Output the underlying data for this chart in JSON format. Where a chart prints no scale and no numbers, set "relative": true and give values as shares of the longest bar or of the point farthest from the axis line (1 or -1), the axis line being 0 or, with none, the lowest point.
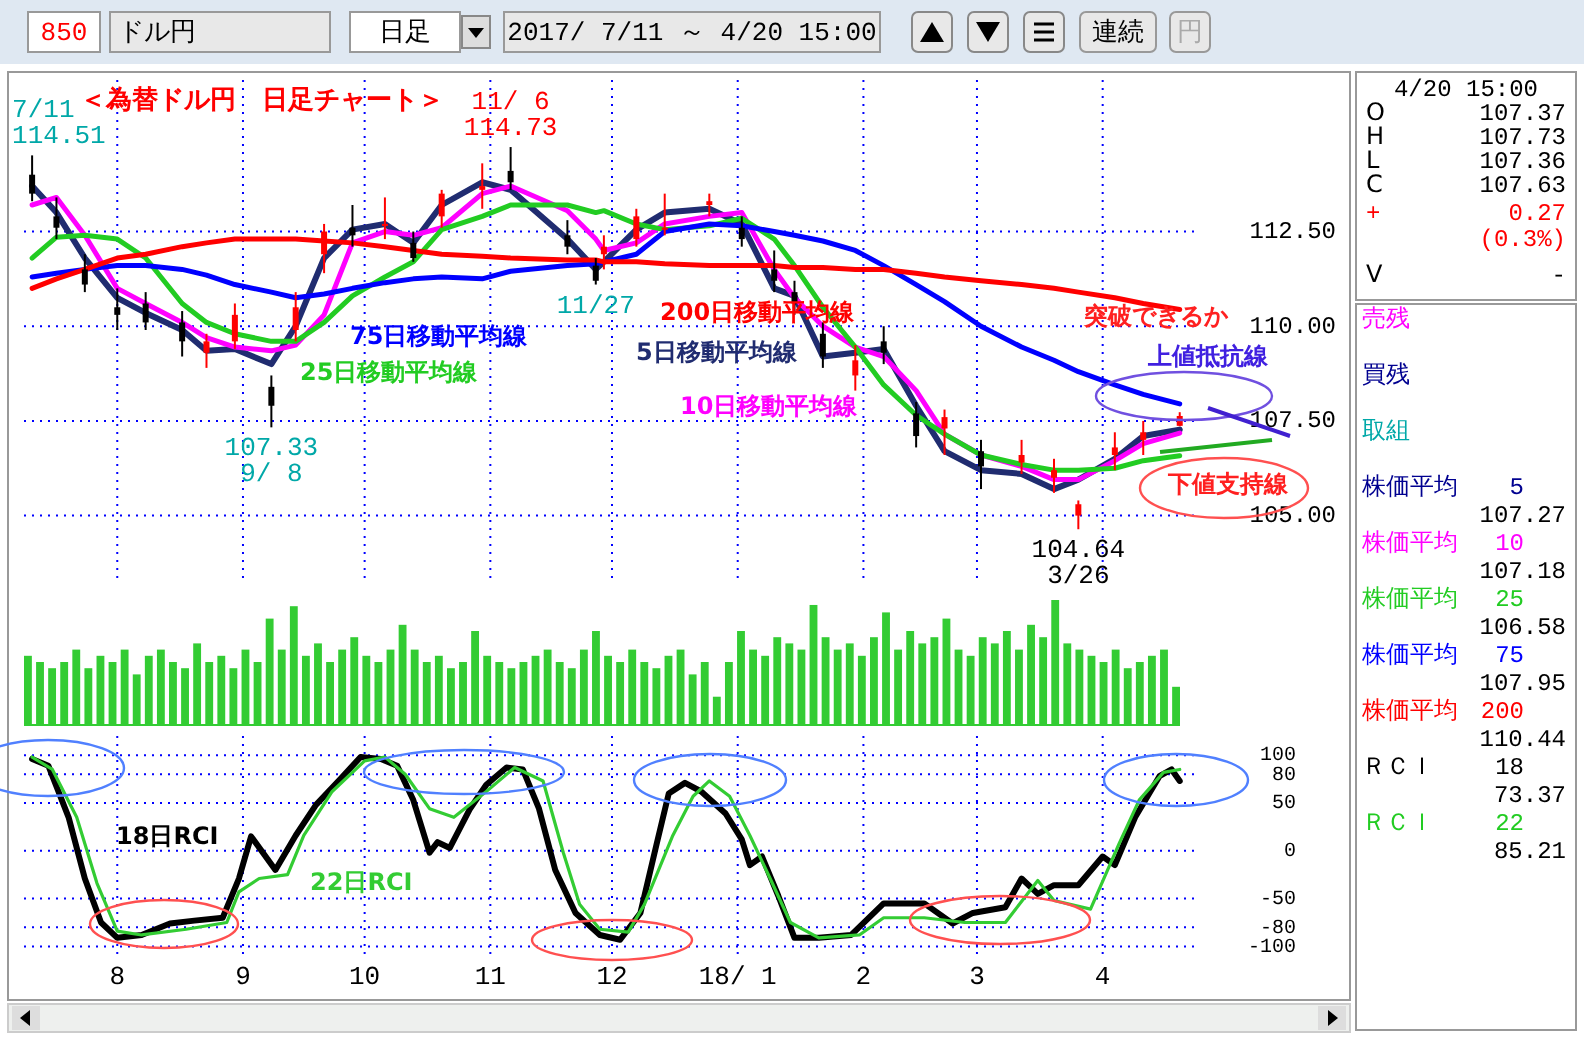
{
  "chart_data": [
    {
      "type": "other",
      "annotations": [
        "850",
        "ドル円",
        "日足",
        "2017/ 7/11 ～ 4/20 15:00",
        "連続",
        "円"
      ]
    },
    {
      "type": "candlestick",
      "title": "＜為替ドル円　日足チャート＞",
      "x": [
        "2017-07-11",
        "2017-07-17",
        "2017-07-24",
        "2017-08-01",
        "2017-08-08",
        "2017-08-17",
        "2017-08-23",
        "2017-08-30",
        "2017-09-08",
        "2017-09-14",
        "2017-09-21",
        "2017-09-28",
        "2017-10-06",
        "2017-10-13",
        "2017-10-20",
        "2017-10-30",
        "2017-11-06",
        "2017-11-20",
        "2017-11-27",
        "2017-11-29",
        "2017-12-07",
        "2017-12-14",
        "2017-12-25",
        "2018-01-02",
        "2018-01-10",
        "2018-01-15",
        "2018-01-22",
        "2018-01-30",
        "2018-02-06",
        "2018-02-14",
        "2018-02-21",
        "2018-03-02",
        "2018-03-12",
        "2018-03-20",
        "2018-03-26",
        "2018-04-04",
        "2018-04-11",
        "2018-04-20"
      ],
      "ohlc": [
        [
          114.0,
          114.51,
          113.3,
          113.5
        ],
        [
          112.9,
          113.4,
          112.3,
          112.6
        ],
        [
          111.5,
          111.9,
          110.9,
          111.1
        ],
        [
          110.5,
          111.0,
          109.9,
          110.3
        ],
        [
          110.6,
          110.9,
          109.9,
          110.1
        ],
        [
          110.1,
          110.4,
          109.2,
          109.6
        ],
        [
          109.3,
          109.8,
          108.9,
          109.6
        ],
        [
          109.6,
          110.6,
          109.4,
          110.3
        ],
        [
          108.4,
          108.7,
          107.33,
          107.9
        ],
        [
          109.9,
          110.9,
          109.6,
          110.5
        ],
        [
          111.9,
          112.7,
          111.4,
          112.5
        ],
        [
          112.6,
          113.2,
          112.1,
          112.4
        ],
        [
          112.7,
          113.4,
          112.3,
          112.7
        ],
        [
          112.2,
          112.5,
          111.7,
          111.8
        ],
        [
          112.9,
          113.6,
          112.6,
          113.5
        ],
        [
          113.6,
          114.3,
          113.1,
          113.7
        ],
        [
          114.1,
          114.73,
          113.6,
          113.8
        ],
        [
          112.4,
          112.8,
          111.9,
          112.1
        ],
        [
          111.6,
          111.8,
          111.1,
          111.2
        ],
        [
          111.9,
          112.4,
          111.5,
          112.1
        ],
        [
          112.3,
          113.1,
          112.1,
          112.9
        ],
        [
          112.6,
          113.5,
          112.4,
          112.6
        ],
        [
          113.2,
          113.5,
          112.9,
          113.3
        ],
        [
          112.6,
          112.9,
          112.1,
          112.3
        ],
        [
          111.5,
          112.0,
          110.9,
          111.2
        ],
        [
          110.9,
          111.2,
          110.3,
          110.6
        ],
        [
          109.8,
          110.1,
          108.9,
          109.2
        ],
        [
          108.7,
          109.5,
          108.3,
          109.1
        ],
        [
          109.6,
          110.0,
          109.0,
          109.3
        ],
        [
          107.7,
          108.0,
          106.8,
          107.1
        ],
        [
          107.3,
          107.8,
          106.6,
          107.6
        ],
        [
          106.7,
          107.0,
          105.7,
          106.3
        ],
        [
          106.4,
          107.0,
          106.1,
          106.6
        ],
        [
          106.0,
          106.5,
          105.6,
          106.2
        ],
        [
          105.0,
          105.4,
          104.64,
          105.3
        ],
        [
          106.6,
          107.2,
          106.2,
          106.8
        ],
        [
          107.0,
          107.5,
          106.6,
          107.2
        ],
        [
          107.37,
          107.73,
          107.36,
          107.63
        ]
      ],
      "series": [
        {
          "name": "5日移動平均線",
          "type": "line",
          "color": "#202c70",
          "values": [
            113.7,
            113.0,
            111.8,
            110.75,
            110.35,
            109.9,
            109.35,
            109.4,
            109.0,
            110.0,
            111.8,
            112.55,
            112.7,
            112.2,
            113.2,
            113.8,
            113.6,
            112.3,
            111.5,
            111.7,
            112.55,
            113.0,
            113.1,
            112.7,
            111.0,
            110.8,
            109.2,
            109.3,
            109.4,
            107.9,
            106.7,
            106.2,
            106.1,
            105.7,
            105.95,
            106.5,
            107.1,
            107.27
          ]
        },
        {
          "name": "10日移動平均線",
          "type": "line",
          "color": "#ff00ff",
          "values": [
            113.2,
            113.4,
            112.4,
            111.0,
            110.6,
            110.1,
            109.7,
            109.45,
            109.35,
            109.5,
            110.3,
            112.2,
            112.5,
            112.4,
            112.6,
            113.5,
            113.7,
            113.05,
            112.3,
            112.0,
            112.2,
            112.7,
            112.9,
            113.0,
            111.5,
            110.75,
            110.0,
            109.45,
            109.2,
            108.3,
            107.15,
            106.6,
            106.3,
            105.95,
            105.95,
            106.45,
            106.9,
            107.18
          ]
        },
        {
          "name": "25日移動平均線",
          "type": "line",
          "color": "#22cc22",
          "values": [
            111.8,
            112.35,
            112.4,
            112.3,
            111.8,
            110.6,
            110.1,
            109.8,
            109.6,
            109.6,
            110.1,
            110.8,
            111.3,
            111.7,
            112.55,
            112.9,
            113.2,
            113.2,
            113.0,
            113.05,
            112.7,
            112.55,
            112.65,
            112.85,
            112.3,
            111.6,
            110.5,
            109.45,
            108.45,
            107.65,
            107.15,
            106.6,
            106.35,
            106.2,
            106.2,
            106.25,
            106.45,
            106.58
          ]
        },
        {
          "name": "75日移動平均線",
          "type": "line",
          "color": "#0000ff",
          "values": [
            111.3,
            111.4,
            111.5,
            111.6,
            111.6,
            111.5,
            111.35,
            111.1,
            110.9,
            110.75,
            110.85,
            111.0,
            111.15,
            111.25,
            111.3,
            111.25,
            111.45,
            111.6,
            111.65,
            111.7,
            111.9,
            112.5,
            112.7,
            112.65,
            112.5,
            112.4,
            112.25,
            112.0,
            111.6,
            111.1,
            110.65,
            110.0,
            109.45,
            109.1,
            108.8,
            108.45,
            108.2,
            107.95
          ]
        },
        {
          "name": "200日移動平均線",
          "type": "line",
          "color": "#ff0000",
          "values": [
            111.0,
            111.25,
            111.5,
            111.8,
            111.9,
            112.1,
            112.2,
            112.3,
            112.3,
            112.3,
            112.25,
            112.2,
            112.1,
            112.0,
            111.9,
            111.85,
            111.8,
            111.75,
            111.75,
            111.7,
            111.7,
            111.65,
            111.6,
            111.6,
            111.6,
            111.55,
            111.55,
            111.5,
            111.5,
            111.4,
            111.3,
            111.2,
            111.1,
            111.0,
            110.9,
            110.75,
            110.6,
            110.44
          ]
        }
      ],
      "xlim": [
        "2017-07-09",
        "2018-04-25"
      ],
      "ylim": [
        103.3,
        116.5
      ],
      "xticks": [
        {
          "value": "2017-08-01",
          "label": null
        },
        {
          "value": "2017-09-01",
          "label": null
        },
        {
          "value": "2017-10-01",
          "label": null
        },
        {
          "value": "2017-11-01",
          "label": null
        },
        {
          "value": "2017-12-01",
          "label": null
        },
        {
          "value": "2018-01-01",
          "label": null
        },
        {
          "value": "2018-02-01",
          "label": null
        },
        {
          "value": "2018-03-01",
          "label": null
        },
        {
          "value": "2018-04-01",
          "label": null
        }
      ],
      "yticks": [
        {
          "value": 105,
          "label": "105.00"
        },
        {
          "value": 107.5,
          "label": "107.50"
        },
        {
          "value": 110,
          "label": "110.00"
        },
        {
          "value": 112.5,
          "label": "112.50"
        }
      ],
      "tick_labels": "y",
      "grid": true,
      "annotations": [
        {
          "text": "7/11\n114.51",
          "x": "2017-07-11",
          "y": 114.51
        },
        {
          "text": "11/ 6\n114.73",
          "x": "2017-11-06",
          "y": 114.73
        },
        {
          "text": "107.33\n9/ 8",
          "x": "2017-09-08",
          "y": 107.33
        },
        {
          "text": "11/27",
          "x": "2017-11-27",
          "y": 111.1
        },
        {
          "text": "104.64\n3/26",
          "x": "2018-03-26",
          "y": 104.64
        },
        "突破できるか",
        "上値抵抗線",
        "下値支持線"
      ]
    },
    {
      "type": "bar",
      "relative": true,
      "color": "#33cc33",
      "categories": [
        null,
        null,
        null,
        null,
        null,
        null,
        null,
        null,
        null,
        null,
        null,
        null,
        null,
        null,
        null,
        null,
        null,
        null,
        null,
        null,
        null,
        null,
        null,
        null,
        null,
        null,
        null,
        null,
        null,
        null,
        null,
        null,
        null,
        null,
        null,
        null,
        null,
        null,
        null,
        null,
        null,
        null,
        null,
        null,
        null,
        null,
        null,
        null,
        null,
        null,
        null,
        null,
        null,
        null,
        null,
        null,
        null,
        null,
        null,
        null,
        null,
        null,
        null,
        null,
        null,
        null,
        null,
        null,
        null,
        null,
        null,
        null,
        null,
        null,
        null,
        null,
        null,
        null,
        null,
        null,
        null,
        null,
        null,
        null,
        null,
        null,
        null,
        null,
        null,
        null,
        null,
        null,
        null,
        null,
        null,
        null
      ],
      "values": [
        0.55,
        0.5,
        0.45,
        0.5,
        0.6,
        0.45,
        0.55,
        0.5,
        0.6,
        0.4,
        0.55,
        0.6,
        0.5,
        0.45,
        0.65,
        0.5,
        0.55,
        0.45,
        0.6,
        0.5,
        0.85,
        0.6,
        0.95,
        0.55,
        0.65,
        0.5,
        0.6,
        0.7,
        0.55,
        0.5,
        0.6,
        0.8,
        0.6,
        0.5,
        0.55,
        0.45,
        0.5,
        0.75,
        0.55,
        0.5,
        0.45,
        0.5,
        0.55,
        0.6,
        0.5,
        0.45,
        0.6,
        0.75,
        0.55,
        0.5,
        0.6,
        0.5,
        0.45,
        0.55,
        0.6,
        0.4,
        0.5,
        0.22,
        0.5,
        0.75,
        0.6,
        0.55,
        0.7,
        0.65,
        0.6,
        0.96,
        0.7,
        0.6,
        0.65,
        0.55,
        0.7,
        0.9,
        0.6,
        0.75,
        0.65,
        0.7,
        0.85,
        0.6,
        0.55,
        0.7,
        0.65,
        0.75,
        0.6,
        0.8,
        0.7,
        1.0,
        0.65,
        0.6,
        0.55,
        0.5,
        0.6,
        0.45,
        0.5,
        0.55,
        0.6,
        0.3
      ]
    },
    {
      "type": "line",
      "series": [
        {
          "name": "18日RCI",
          "color": "#000000",
          "x": [
            "2017-07-11",
            "2017-07-15",
            "2017-07-20",
            "2017-07-24",
            "2017-07-28",
            "2017-08-01",
            "2017-08-07",
            "2017-08-14",
            "2017-08-20",
            "2017-08-27",
            "2017-08-31",
            "2017-09-03",
            "2017-09-09",
            "2017-09-14",
            "2017-09-19",
            "2017-09-25",
            "2017-09-30",
            "2017-10-05",
            "2017-10-09",
            "2017-10-13",
            "2017-10-17",
            "2017-10-19",
            "2017-10-22",
            "2017-10-27",
            "2017-10-31",
            "2017-11-05",
            "2017-11-09",
            "2017-11-13",
            "2017-11-17",
            "2017-11-22",
            "2017-11-28",
            "2017-12-03",
            "2017-12-08",
            "2017-12-12",
            "2017-12-15",
            "2017-12-19",
            "2017-12-23",
            "2017-12-29",
            "2018-01-02",
            "2018-01-04",
            "2018-01-07",
            "2018-01-11",
            "2018-01-15",
            "2018-01-21",
            "2018-01-29",
            "2018-02-06",
            "2018-02-16",
            "2018-02-23",
            "2018-02-28",
            "2018-03-08",
            "2018-03-12",
            "2018-03-16",
            "2018-03-20",
            "2018-03-26",
            "2018-04-01",
            "2018-04-04",
            "2018-04-09",
            "2018-04-15",
            "2018-04-18",
            "2018-04-20"
          ],
          "values": [
            96,
            89,
            35,
            -29,
            -75,
            -91,
            -88,
            -76,
            -73,
            -70,
            -29,
            15,
            -20,
            16,
            48,
            75,
            98,
            96,
            89,
            53,
            -2,
            9,
            3,
            44,
            69,
            87,
            85,
            44,
            -20,
            -65,
            -88,
            -93,
            -65,
            7,
            60,
            71,
            62,
            39,
            12,
            -15,
            -6,
            -47,
            -91,
            -91,
            -88,
            -55,
            -55,
            -76,
            -65,
            -59,
            -29,
            -45,
            -36,
            -36,
            -6,
            -15,
            35,
            78,
            85,
            73
          ]
        },
        {
          "name": "22日RCI",
          "color": "#33cc33",
          "x": [
            "2017-07-11",
            "2017-07-16",
            "2017-07-22",
            "2017-07-27",
            "2017-08-01",
            "2017-08-07",
            "2017-08-18",
            "2017-08-28",
            "2017-08-31",
            "2017-09-05",
            "2017-09-12",
            "2017-09-16",
            "2017-09-23",
            "2017-10-01",
            "2017-10-06",
            "2017-10-11",
            "2017-10-17",
            "2017-10-23",
            "2017-10-31",
            "2017-11-07",
            "2017-11-14",
            "2017-11-19",
            "2017-11-23",
            "2017-11-28",
            "2017-12-05",
            "2017-12-09",
            "2017-12-16",
            "2017-12-21",
            "2017-12-25",
            "2017-12-30",
            "2018-01-04",
            "2018-01-09",
            "2018-01-14",
            "2018-01-21",
            "2018-01-31",
            "2018-02-06",
            "2018-02-16",
            "2018-02-26",
            "2018-03-08",
            "2018-03-16",
            "2018-03-20",
            "2018-03-29",
            "2018-04-05",
            "2018-04-10",
            "2018-04-16",
            "2018-04-20"
          ],
          "values": [
            98,
            85,
            35,
            -34,
            -84,
            -88,
            -82,
            -75,
            -43,
            -29,
            -25,
            16,
            62,
            94,
            98,
            80,
            44,
            35,
            62,
            87,
            73,
            -2,
            -56,
            -82,
            -85,
            -56,
            16,
            57,
            73,
            57,
            16,
            -29,
            -75,
            -91,
            -88,
            -70,
            -70,
            -75,
            -75,
            -31,
            -52,
            -61,
            7,
            53,
            82,
            85
          ]
        }
      ],
      "xlim": [
        "2017-07-09",
        "2018-04-25"
      ],
      "ylim": [
        -110,
        120
      ],
      "xticks": [
        {
          "value": "2017-08-01",
          "label": "8"
        },
        {
          "value": "2017-09-01",
          "label": "9"
        },
        {
          "value": "2017-10-01",
          "label": "10"
        },
        {
          "value": "2017-11-01",
          "label": "11"
        },
        {
          "value": "2017-12-01",
          "label": "12"
        },
        {
          "value": "2018-01-01",
          "label": "18/ 1"
        },
        {
          "value": "2018-02-01",
          "label": "2"
        },
        {
          "value": "2018-03-01",
          "label": "3"
        },
        {
          "value": "2018-04-01",
          "label": "4"
        }
      ],
      "yticks": [
        100,
        80,
        50,
        0,
        -50,
        -80,
        -100
      ],
      "grid": true
    },
    {
      "type": "other",
      "annotations": [
        "4/20 15:00",
        "O",
        "107.37",
        "H",
        "107.73",
        "L",
        "107.36",
        "C",
        "107.63",
        "+",
        "0.27",
        "(0.3%)",
        "V",
        "-",
        "売残",
        "買残",
        "取組",
        "株価平均",
        "5",
        "107.27",
        "株価平均",
        "10",
        "107.18",
        "株価平均",
        "25",
        "106.58",
        "株価平均",
        "75",
        "107.95",
        "株価平均",
        "200",
        "110.44",
        "ＲＣＩ",
        "18",
        "73.37",
        "ＲＣＩ",
        "22",
        "85.21"
      ]
    }
  ]
}
